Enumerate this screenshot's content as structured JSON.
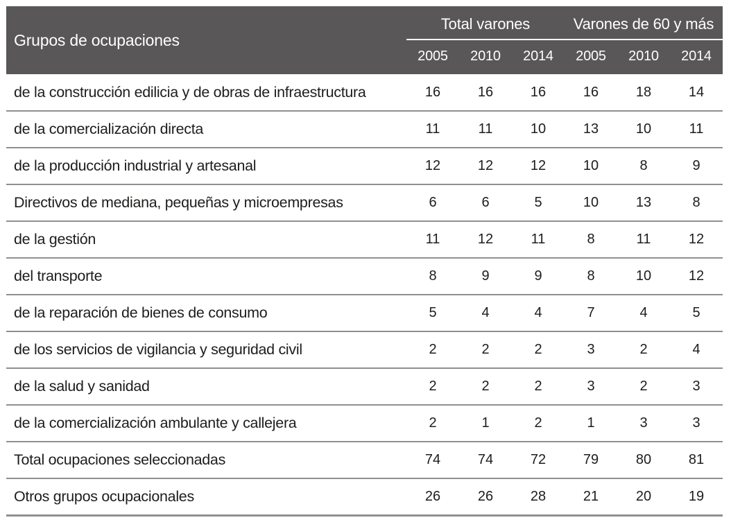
{
  "colors": {
    "header_bg": "#595757",
    "header_text": "#ffffff",
    "row_line": "#8f8f8f",
    "body_text": "#1d1d1b"
  },
  "chart_data": {
    "type": "table",
    "corner_header": "Grupos de ocupaciones",
    "group_headers": [
      "Total varones",
      "Varones de 60 y más"
    ],
    "year_headers": [
      "2005",
      "2010",
      "2014",
      "2005",
      "2010",
      "2014"
    ],
    "rows": [
      {
        "label": "de la construcción edilicia y de obras de infraestructura",
        "values": [
          16,
          16,
          16,
          16,
          18,
          14
        ]
      },
      {
        "label": "de la comercialización directa",
        "values": [
          11,
          11,
          10,
          13,
          10,
          11
        ]
      },
      {
        "label": "de la producción industrial y artesanal",
        "values": [
          12,
          12,
          12,
          10,
          8,
          9
        ]
      },
      {
        "label": "Directivos de mediana, pequeñas y microempresas",
        "values": [
          6,
          6,
          5,
          10,
          13,
          8
        ]
      },
      {
        "label": "de la gestión",
        "values": [
          11,
          12,
          11,
          8,
          11,
          12
        ]
      },
      {
        "label": "del transporte",
        "values": [
          8,
          9,
          9,
          8,
          10,
          12
        ]
      },
      {
        "label": "de la reparación de bienes de consumo",
        "values": [
          5,
          4,
          4,
          7,
          4,
          5
        ]
      },
      {
        "label": "de los servicios de vigilancia y seguridad civil",
        "values": [
          2,
          2,
          2,
          3,
          2,
          4
        ]
      },
      {
        "label": "de la salud y sanidad",
        "values": [
          2,
          2,
          2,
          3,
          2,
          3
        ]
      },
      {
        "label": "de la comercialización ambulante y callejera",
        "values": [
          2,
          1,
          2,
          1,
          3,
          3
        ]
      },
      {
        "label": "Total ocupaciones seleccionadas",
        "values": [
          74,
          74,
          72,
          79,
          80,
          81
        ]
      },
      {
        "label": "Otros grupos ocupacionales",
        "values": [
          26,
          26,
          28,
          21,
          20,
          19
        ]
      }
    ]
  }
}
